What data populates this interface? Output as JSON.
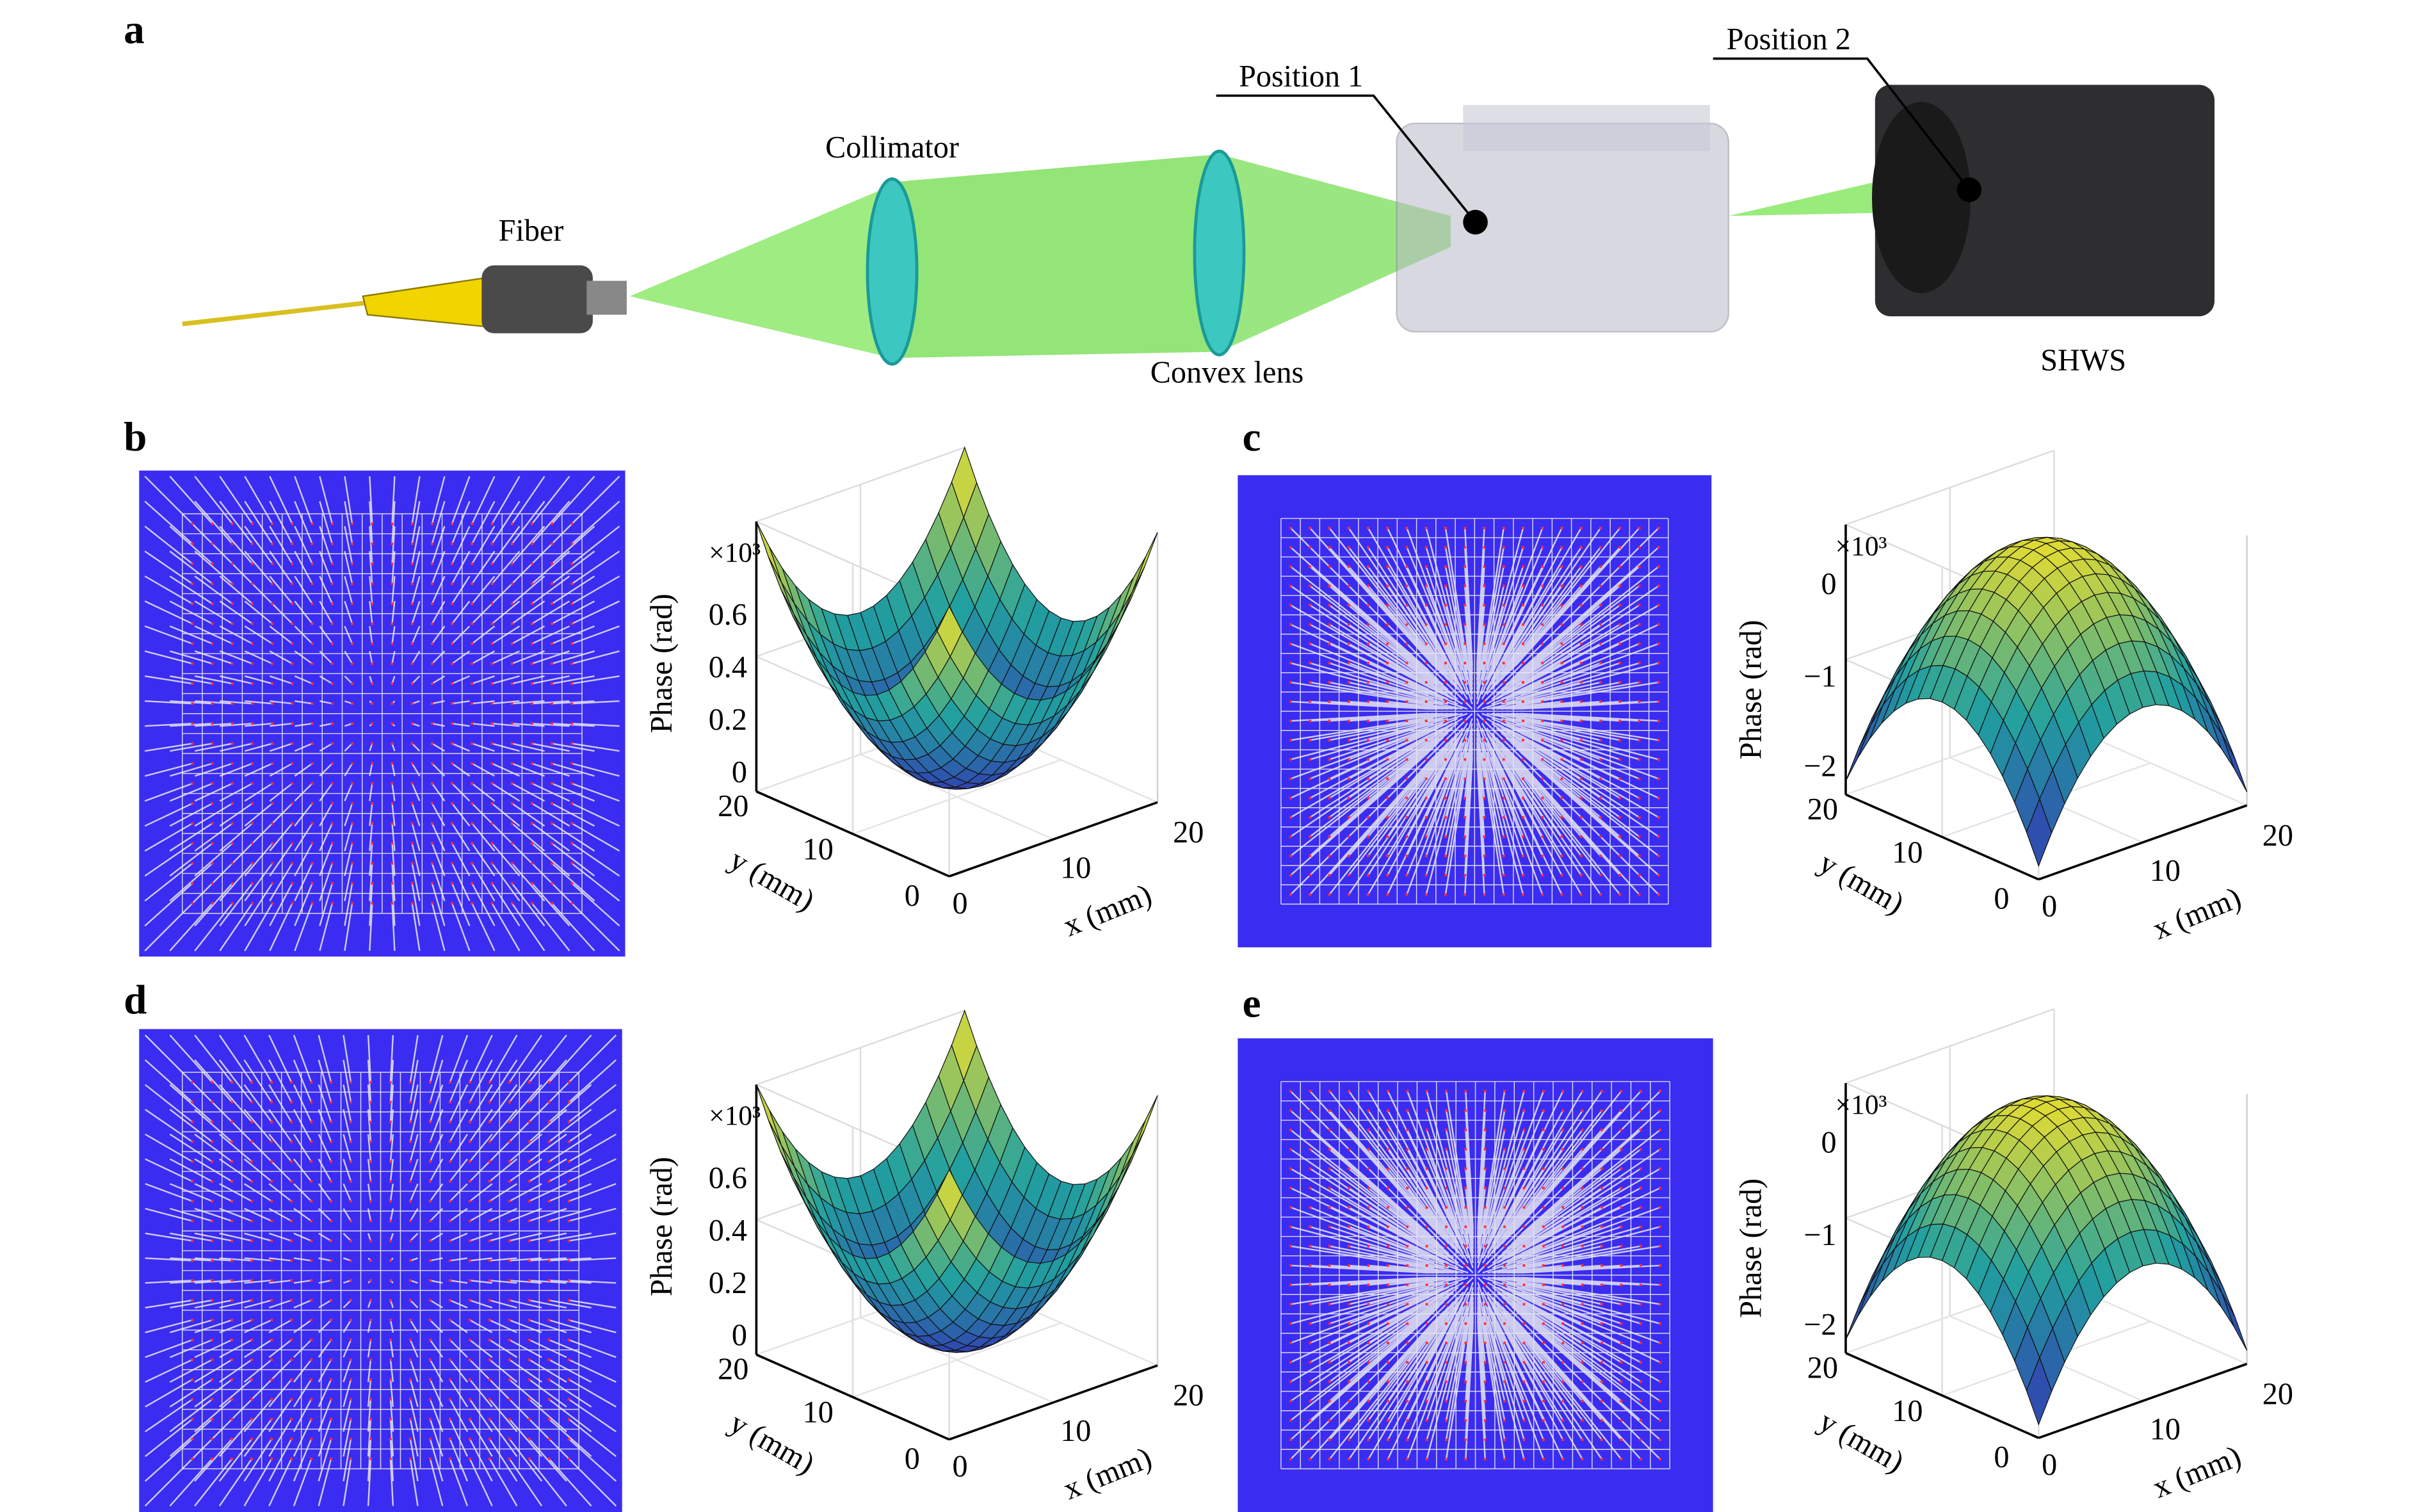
{
  "panel_labels": [
    "a",
    "b",
    "c",
    "d",
    "e"
  ],
  "setup": {
    "fiber": "Fiber",
    "collimator": "Collimator",
    "convex_lens": "Convex lens",
    "position_1": "Position 1",
    "position_2": "Position 2",
    "shws": "SHWS"
  },
  "plots": [
    {
      "z_multiplier": "×10³",
      "z_label": "Phase (rad)",
      "x_label": "x (mm)",
      "y_label": "y (mm)",
      "z_ticks": [
        "0",
        "0.2",
        "0.4",
        "0.6"
      ],
      "x_ticks": [
        "0",
        "10",
        "20"
      ],
      "y_ticks": [
        "0",
        "10",
        "20"
      ]
    },
    {
      "z_multiplier": "×10³",
      "z_label": "Phase (rad)",
      "x_label": "x (mm)",
      "y_label": "y (mm)",
      "z_ticks": [
        "0",
        "−1",
        "−2"
      ],
      "x_ticks": [
        "0",
        "10",
        "20"
      ],
      "y_ticks": [
        "0",
        "10",
        "20"
      ]
    },
    {
      "z_multiplier": "×10³",
      "z_label": "Phase (rad)",
      "x_label": "x (mm)",
      "y_label": "y (mm)",
      "z_ticks": [
        "0",
        "0.2",
        "0.4",
        "0.6"
      ],
      "x_ticks": [
        "0",
        "10",
        "20"
      ],
      "y_ticks": [
        "0",
        "10",
        "20"
      ]
    },
    {
      "z_multiplier": "×10³",
      "z_label": "Phase (rad)",
      "x_label": "x (mm)",
      "y_label": "y (mm)",
      "z_ticks": [
        "0",
        "−1",
        "−2"
      ],
      "x_ticks": [
        "0",
        "10",
        "20"
      ],
      "y_ticks": [
        "0",
        "10",
        "20"
      ]
    }
  ]
}
